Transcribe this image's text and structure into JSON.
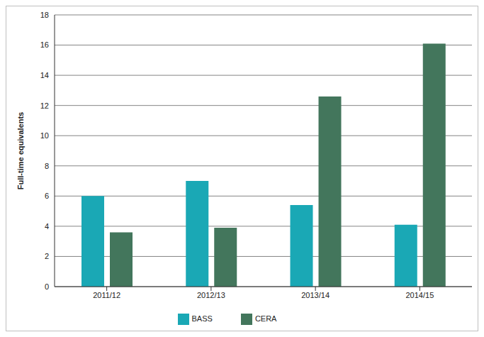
{
  "chart_data": {
    "type": "bar",
    "y_label": "Full-time equivalents",
    "categories": [
      "2011/12",
      "2012/13",
      "2013/14",
      "2014/15"
    ],
    "series": [
      {
        "name": "BASS",
        "color": "#1aa8b5",
        "values": [
          6,
          7,
          5.4,
          4.1
        ]
      },
      {
        "name": "CERA",
        "color": "#43765c",
        "values": [
          3.6,
          3.9,
          12.6,
          16.1
        ]
      }
    ],
    "ylim": [
      0,
      18
    ],
    "yticks": [
      0,
      2,
      4,
      6,
      8,
      10,
      12,
      14,
      16,
      18
    ],
    "grid": true,
    "legend": "bottom"
  }
}
